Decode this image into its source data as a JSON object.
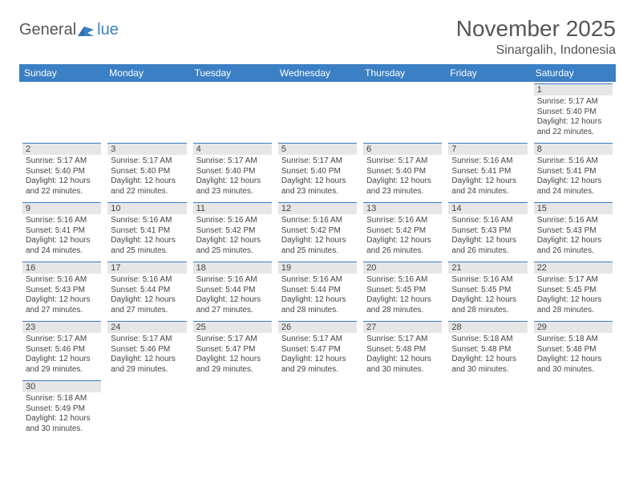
{
  "logo": {
    "prefix": "General",
    "suffix": "lue"
  },
  "title": "November 2025",
  "location": "Sinargalih, Indonesia",
  "colors": {
    "header_bg": "#3b7fc4",
    "header_text": "#ffffff",
    "daynum_bg": "#e6e6e6",
    "daynum_border": "#3b7fc4",
    "text": "#444444",
    "page_bg": "#ffffff"
  },
  "weekdays": [
    "Sunday",
    "Monday",
    "Tuesday",
    "Wednesday",
    "Thursday",
    "Friday",
    "Saturday"
  ],
  "weeks": [
    [
      null,
      null,
      null,
      null,
      null,
      null,
      {
        "n": "1",
        "sr": "Sunrise: 5:17 AM",
        "ss": "Sunset: 5:40 PM",
        "d1": "Daylight: 12 hours",
        "d2": "and 22 minutes."
      }
    ],
    [
      {
        "n": "2",
        "sr": "Sunrise: 5:17 AM",
        "ss": "Sunset: 5:40 PM",
        "d1": "Daylight: 12 hours",
        "d2": "and 22 minutes."
      },
      {
        "n": "3",
        "sr": "Sunrise: 5:17 AM",
        "ss": "Sunset: 5:40 PM",
        "d1": "Daylight: 12 hours",
        "d2": "and 22 minutes."
      },
      {
        "n": "4",
        "sr": "Sunrise: 5:17 AM",
        "ss": "Sunset: 5:40 PM",
        "d1": "Daylight: 12 hours",
        "d2": "and 23 minutes."
      },
      {
        "n": "5",
        "sr": "Sunrise: 5:17 AM",
        "ss": "Sunset: 5:40 PM",
        "d1": "Daylight: 12 hours",
        "d2": "and 23 minutes."
      },
      {
        "n": "6",
        "sr": "Sunrise: 5:17 AM",
        "ss": "Sunset: 5:40 PM",
        "d1": "Daylight: 12 hours",
        "d2": "and 23 minutes."
      },
      {
        "n": "7",
        "sr": "Sunrise: 5:16 AM",
        "ss": "Sunset: 5:41 PM",
        "d1": "Daylight: 12 hours",
        "d2": "and 24 minutes."
      },
      {
        "n": "8",
        "sr": "Sunrise: 5:16 AM",
        "ss": "Sunset: 5:41 PM",
        "d1": "Daylight: 12 hours",
        "d2": "and 24 minutes."
      }
    ],
    [
      {
        "n": "9",
        "sr": "Sunrise: 5:16 AM",
        "ss": "Sunset: 5:41 PM",
        "d1": "Daylight: 12 hours",
        "d2": "and 24 minutes."
      },
      {
        "n": "10",
        "sr": "Sunrise: 5:16 AM",
        "ss": "Sunset: 5:41 PM",
        "d1": "Daylight: 12 hours",
        "d2": "and 25 minutes."
      },
      {
        "n": "11",
        "sr": "Sunrise: 5:16 AM",
        "ss": "Sunset: 5:42 PM",
        "d1": "Daylight: 12 hours",
        "d2": "and 25 minutes."
      },
      {
        "n": "12",
        "sr": "Sunrise: 5:16 AM",
        "ss": "Sunset: 5:42 PM",
        "d1": "Daylight: 12 hours",
        "d2": "and 25 minutes."
      },
      {
        "n": "13",
        "sr": "Sunrise: 5:16 AM",
        "ss": "Sunset: 5:42 PM",
        "d1": "Daylight: 12 hours",
        "d2": "and 26 minutes."
      },
      {
        "n": "14",
        "sr": "Sunrise: 5:16 AM",
        "ss": "Sunset: 5:43 PM",
        "d1": "Daylight: 12 hours",
        "d2": "and 26 minutes."
      },
      {
        "n": "15",
        "sr": "Sunrise: 5:16 AM",
        "ss": "Sunset: 5:43 PM",
        "d1": "Daylight: 12 hours",
        "d2": "and 26 minutes."
      }
    ],
    [
      {
        "n": "16",
        "sr": "Sunrise: 5:16 AM",
        "ss": "Sunset: 5:43 PM",
        "d1": "Daylight: 12 hours",
        "d2": "and 27 minutes."
      },
      {
        "n": "17",
        "sr": "Sunrise: 5:16 AM",
        "ss": "Sunset: 5:44 PM",
        "d1": "Daylight: 12 hours",
        "d2": "and 27 minutes."
      },
      {
        "n": "18",
        "sr": "Sunrise: 5:16 AM",
        "ss": "Sunset: 5:44 PM",
        "d1": "Daylight: 12 hours",
        "d2": "and 27 minutes."
      },
      {
        "n": "19",
        "sr": "Sunrise: 5:16 AM",
        "ss": "Sunset: 5:44 PM",
        "d1": "Daylight: 12 hours",
        "d2": "and 28 minutes."
      },
      {
        "n": "20",
        "sr": "Sunrise: 5:16 AM",
        "ss": "Sunset: 5:45 PM",
        "d1": "Daylight: 12 hours",
        "d2": "and 28 minutes."
      },
      {
        "n": "21",
        "sr": "Sunrise: 5:16 AM",
        "ss": "Sunset: 5:45 PM",
        "d1": "Daylight: 12 hours",
        "d2": "and 28 minutes."
      },
      {
        "n": "22",
        "sr": "Sunrise: 5:17 AM",
        "ss": "Sunset: 5:45 PM",
        "d1": "Daylight: 12 hours",
        "d2": "and 28 minutes."
      }
    ],
    [
      {
        "n": "23",
        "sr": "Sunrise: 5:17 AM",
        "ss": "Sunset: 5:46 PM",
        "d1": "Daylight: 12 hours",
        "d2": "and 29 minutes."
      },
      {
        "n": "24",
        "sr": "Sunrise: 5:17 AM",
        "ss": "Sunset: 5:46 PM",
        "d1": "Daylight: 12 hours",
        "d2": "and 29 minutes."
      },
      {
        "n": "25",
        "sr": "Sunrise: 5:17 AM",
        "ss": "Sunset: 5:47 PM",
        "d1": "Daylight: 12 hours",
        "d2": "and 29 minutes."
      },
      {
        "n": "26",
        "sr": "Sunrise: 5:17 AM",
        "ss": "Sunset: 5:47 PM",
        "d1": "Daylight: 12 hours",
        "d2": "and 29 minutes."
      },
      {
        "n": "27",
        "sr": "Sunrise: 5:17 AM",
        "ss": "Sunset: 5:48 PM",
        "d1": "Daylight: 12 hours",
        "d2": "and 30 minutes."
      },
      {
        "n": "28",
        "sr": "Sunrise: 5:18 AM",
        "ss": "Sunset: 5:48 PM",
        "d1": "Daylight: 12 hours",
        "d2": "and 30 minutes."
      },
      {
        "n": "29",
        "sr": "Sunrise: 5:18 AM",
        "ss": "Sunset: 5:48 PM",
        "d1": "Daylight: 12 hours",
        "d2": "and 30 minutes."
      }
    ],
    [
      {
        "n": "30",
        "sr": "Sunrise: 5:18 AM",
        "ss": "Sunset: 5:49 PM",
        "d1": "Daylight: 12 hours",
        "d2": "and 30 minutes."
      },
      null,
      null,
      null,
      null,
      null,
      null
    ]
  ]
}
